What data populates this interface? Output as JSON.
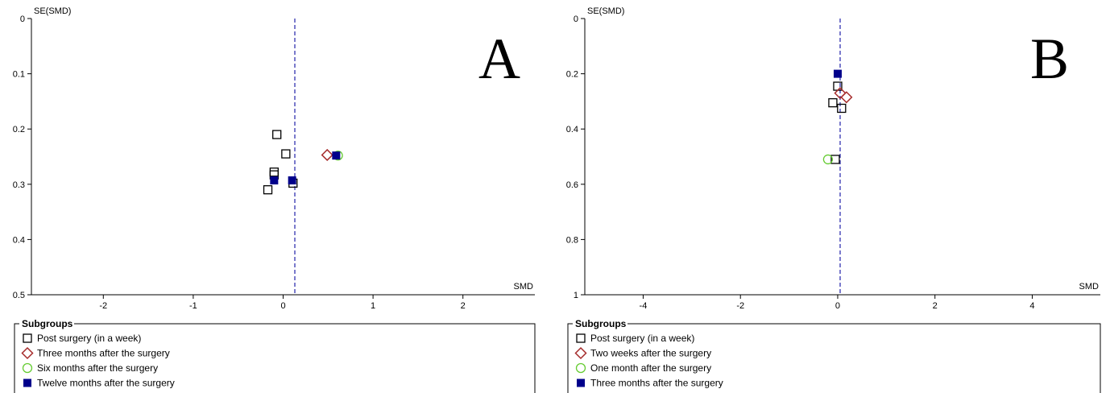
{
  "chart_data": [
    {
      "type": "scatter",
      "panel_label": "A",
      "xlabel": "SMD",
      "ylabel": "SE(SMD)",
      "xlim": [
        -2.8,
        2.8
      ],
      "ylim": [
        0,
        0.5
      ],
      "y_inverted": true,
      "xticks": [
        -2,
        -1,
        0,
        1,
        2
      ],
      "yticks": [
        0,
        0.1,
        0.2,
        0.3,
        0.4,
        0.5
      ],
      "ytick_labels": [
        "0",
        "0.1",
        "0.2",
        "0.3",
        "0.4",
        "0.5"
      ],
      "reference_line_x": 0.13,
      "legend": {
        "title": "Subgroups",
        "entries": [
          {
            "label": "Post surgery (in a week)",
            "marker": "open-square",
            "color": "#000000"
          },
          {
            "label": "Three months after the surgery",
            "marker": "open-diamond",
            "color": "#a52a2a"
          },
          {
            "label": "Six months after the surgery",
            "marker": "open-circle",
            "color": "#66cc33"
          },
          {
            "label": "Twelve months after the surgery",
            "marker": "filled-square",
            "color": "#00008b"
          }
        ]
      },
      "series": [
        {
          "marker": "open-square",
          "color": "#000000",
          "points": [
            [
              -0.07,
              0.21
            ],
            [
              0.03,
              0.245
            ],
            [
              -0.1,
              0.278
            ],
            [
              -0.1,
              0.283
            ],
            [
              -0.17,
              0.31
            ],
            [
              0.11,
              0.298
            ]
          ]
        },
        {
          "marker": "open-diamond",
          "color": "#a52a2a",
          "points": [
            [
              0.49,
              0.247
            ]
          ]
        },
        {
          "marker": "open-circle",
          "color": "#66cc33",
          "points": [
            [
              0.61,
              0.248
            ]
          ]
        },
        {
          "marker": "filled-square",
          "color": "#00008b",
          "points": [
            [
              0.59,
              0.248
            ],
            [
              -0.1,
              0.293
            ],
            [
              0.1,
              0.293
            ]
          ]
        }
      ]
    },
    {
      "type": "scatter",
      "panel_label": "B",
      "xlabel": "SMD",
      "ylabel": "SE(SMD)",
      "xlim": [
        -5.2,
        5.4
      ],
      "ylim": [
        0,
        1
      ],
      "y_inverted": true,
      "xticks": [
        -4,
        -2,
        0,
        2,
        4
      ],
      "yticks": [
        0,
        0.2,
        0.4,
        0.6,
        0.8,
        1
      ],
      "ytick_labels": [
        "0",
        "0.2",
        "0.4",
        "0.6",
        "0.8",
        "1"
      ],
      "reference_line_x": 0.05,
      "legend": {
        "title": "Subgroups",
        "entries": [
          {
            "label": "Post surgery (in a week)",
            "marker": "open-square",
            "color": "#000000"
          },
          {
            "label": "Two weeks after the surgery",
            "marker": "open-diamond",
            "color": "#a52a2a"
          },
          {
            "label": "One month after the surgery",
            "marker": "open-circle",
            "color": "#66cc33"
          },
          {
            "label": "Three months after the surgery",
            "marker": "filled-square",
            "color": "#00008b"
          }
        ]
      },
      "series": [
        {
          "marker": "open-square",
          "color": "#000000",
          "points": [
            [
              0.0,
              0.245
            ],
            [
              -0.1,
              0.305
            ],
            [
              0.08,
              0.325
            ],
            [
              -0.05,
              0.51
            ]
          ]
        },
        {
          "marker": "open-diamond",
          "color": "#a52a2a",
          "points": [
            [
              0.05,
              0.27
            ],
            [
              0.18,
              0.285
            ]
          ]
        },
        {
          "marker": "open-circle",
          "color": "#66cc33",
          "points": [
            [
              -0.2,
              0.51
            ]
          ]
        },
        {
          "marker": "filled-square",
          "color": "#00008b",
          "points": [
            [
              0.0,
              0.2
            ]
          ]
        }
      ]
    }
  ]
}
